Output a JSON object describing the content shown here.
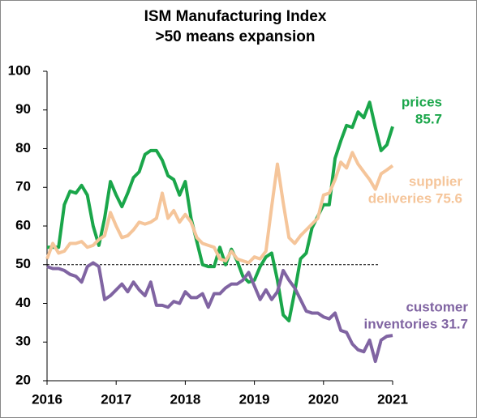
{
  "chart_data": {
    "type": "line",
    "title": "ISM Manufacturing Index",
    "subtitle": ">50 means expansion",
    "x": [
      2016,
      2016.083,
      2016.167,
      2016.25,
      2016.333,
      2016.417,
      2016.5,
      2016.583,
      2016.667,
      2016.75,
      2016.833,
      2016.917,
      2017,
      2017.083,
      2017.167,
      2017.25,
      2017.333,
      2017.417,
      2017.5,
      2017.583,
      2017.667,
      2017.75,
      2017.833,
      2017.917,
      2018,
      2018.083,
      2018.167,
      2018.25,
      2018.333,
      2018.417,
      2018.5,
      2018.583,
      2018.667,
      2018.75,
      2018.833,
      2018.917,
      2019,
      2019.083,
      2019.167,
      2019.25,
      2019.333,
      2019.417,
      2019.5,
      2019.583,
      2019.667,
      2019.75,
      2019.833,
      2019.917,
      2020,
      2020.083,
      2020.167,
      2020.25,
      2020.333,
      2020.417,
      2020.5,
      2020.583,
      2020.667,
      2020.75,
      2020.833,
      2020.917,
      2021
    ],
    "series": [
      {
        "color": "#1aa64a",
        "values": [
          54.5,
          54.5,
          54.5,
          65.5,
          69,
          68.5,
          70.5,
          68,
          60,
          55,
          62,
          71.5,
          68,
          65,
          68.5,
          72.5,
          74,
          78.5,
          79.5,
          79.5,
          77,
          73,
          72,
          68,
          71.5,
          62,
          56,
          50,
          49.5,
          49.5,
          54.5,
          50,
          54,
          51,
          47,
          45.5,
          46,
          49.5,
          52,
          53,
          46,
          37,
          35.5,
          43,
          51.5,
          53,
          59.5,
          62.5,
          65.5,
          65.5,
          77.5,
          82,
          86,
          85.5,
          89.5,
          88,
          92,
          85.5,
          79.5,
          81,
          85.7
        ]
      },
      {
        "color": "#f5c59a",
        "values": [
          51.5,
          55.5,
          53,
          53.5,
          55.5,
          55.5,
          56,
          54.5,
          55,
          56.5,
          57.5,
          63.5,
          60,
          57,
          57.5,
          59,
          61,
          60.5,
          61,
          62,
          68.5,
          62,
          64,
          61,
          63,
          61,
          57,
          55.5,
          55,
          54.5,
          51.5,
          51,
          53.5,
          51.5,
          51,
          50.5,
          52,
          51.5,
          53.5,
          65,
          76,
          66,
          57,
          55.5,
          57.5,
          59,
          60.5,
          62,
          68,
          68.5,
          72,
          76.5,
          75,
          79,
          76,
          74,
          72,
          69.5,
          73.5,
          74.5,
          75.6
        ]
      },
      {
        "color": "#8064a2",
        "values": [
          49.5,
          49,
          49,
          48.5,
          47.5,
          47,
          45.5,
          49.5,
          50.5,
          49.5,
          41,
          42,
          43.5,
          45,
          43,
          45.5,
          43.5,
          42,
          45.5,
          39.5,
          39.5,
          39,
          40.5,
          40,
          43,
          41.5,
          41.5,
          42.5,
          39,
          42.5,
          42.5,
          44,
          45,
          45,
          46,
          48,
          44.5,
          41,
          43.5,
          41,
          43,
          48.5,
          46,
          44,
          41,
          38,
          37.5,
          37.5,
          36.5,
          36,
          37.5,
          33,
          32.5,
          29.5,
          28,
          27.5,
          30.5,
          25,
          30.5,
          31.5,
          31.7
        ]
      }
    ],
    "annotations": [
      {
        "lines": [
          "prices",
          "85.7"
        ],
        "color": "#1aa64a"
      },
      {
        "lines": [
          "supplier",
          "deliveries 75.6"
        ],
        "color": "#f5c59a"
      },
      {
        "lines": [
          "customer",
          "inventories 31.7"
        ],
        "color": "#8064a2"
      }
    ],
    "reference_line": 50,
    "xlim": [
      2016,
      2021
    ],
    "xticks": [
      2016,
      2017,
      2018,
      2019,
      2020,
      2021
    ],
    "ylim": [
      20,
      100
    ],
    "yticks": [
      20,
      30,
      40,
      50,
      60,
      70,
      80,
      90,
      100
    ],
    "grid": false
  }
}
